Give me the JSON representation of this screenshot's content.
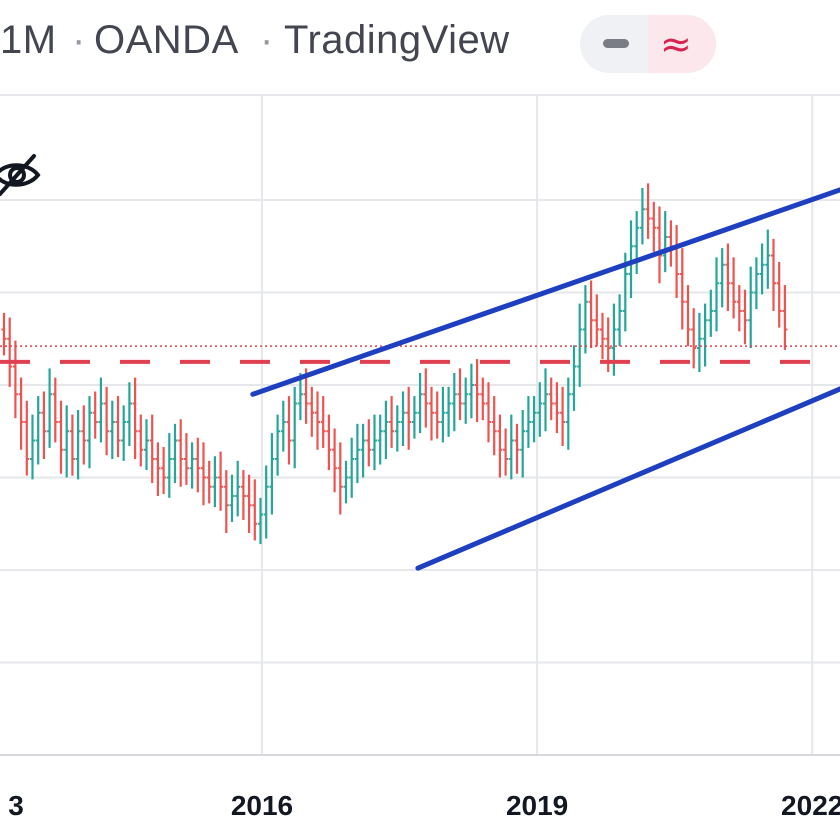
{
  "header": {
    "interval": "1M",
    "broker": "OANDA",
    "platform": "TradingView",
    "separator": "·",
    "minus_icon": "minus-icon",
    "wave_icon": "approx-wave-icon",
    "wave_glyph": "≈",
    "accent_color": "#d8224f"
  },
  "overlay": {
    "hide_icon": "eye-slash-icon"
  },
  "chart_data": {
    "type": "ohlc-bar",
    "title": "",
    "xlabel": "",
    "ylabel": "",
    "grid": true,
    "x_tick_labels": [
      {
        "label": "3",
        "year": 2013
      },
      {
        "label": "2016",
        "year": 2016
      },
      {
        "label": "2019",
        "year": 2019
      },
      {
        "label": "2022",
        "year": 2022
      }
    ],
    "colors": {
      "up": "#26a69a",
      "down": "#ef5350",
      "channel": "#1e3fbf",
      "horizontal_level": "#e04050",
      "price_line": "#e04050",
      "grid": "#e6e7ea"
    },
    "annotations": {
      "ascending_channel": {
        "upper": {
          "from_year": 2015.9,
          "to_year": 2023.0,
          "from_level": 3.9,
          "to_level": 6.35
        },
        "lower": {
          "from_year": 2017.7,
          "to_year": 2023.0,
          "from_level": 2.02,
          "to_level": 4.25
        }
      },
      "horizontal_dashed_level": 4.25,
      "dotted_price_line": 4.42
    },
    "series_levels": [
      4.5,
      4.2,
      3.9,
      3.6,
      3.2,
      3.4,
      3.7,
      3.5,
      3.9,
      3.6,
      3.3,
      3.5,
      3.2,
      3.5,
      3.4,
      3.7,
      3.6,
      3.8,
      3.5,
      3.6,
      3.4,
      3.6,
      3.8,
      3.5,
      3.3,
      3.4,
      3.2,
      3.1,
      3.0,
      3.2,
      3.4,
      3.2,
      3.1,
      3.2,
      3.1,
      3.0,
      2.9,
      3.0,
      2.9,
      2.7,
      2.8,
      2.9,
      2.8,
      2.7,
      2.5,
      2.6,
      2.9,
      3.2,
      3.5,
      3.6,
      3.4,
      3.8,
      3.9,
      3.8,
      3.7,
      3.6,
      3.5,
      3.3,
      3.1,
      2.9,
      3.0,
      3.2,
      3.3,
      3.4,
      3.3,
      3.4,
      3.5,
      3.6,
      3.5,
      3.6,
      3.7,
      3.6,
      3.7,
      3.9,
      3.8,
      3.7,
      3.6,
      3.7,
      3.8,
      3.9,
      3.8,
      3.9,
      4.0,
      3.9,
      3.8,
      3.6,
      3.5,
      3.3,
      3.2,
      3.4,
      3.3,
      3.5,
      3.6,
      3.7,
      3.8,
      3.9,
      3.8,
      3.7,
      3.6,
      3.9,
      4.2,
      4.6,
      4.9,
      4.7,
      4.6,
      4.5,
      4.4,
      4.6,
      4.8,
      5.2,
      5.5,
      5.7,
      5.9,
      5.8,
      5.7,
      5.4,
      5.6,
      5.5,
      5.2,
      4.9,
      4.6,
      4.4,
      4.5,
      4.7,
      4.8,
      5.1,
      5.3,
      5.1,
      4.9,
      4.8,
      4.7,
      5.0,
      5.2,
      5.3,
      5.4,
      5.1,
      4.8,
      4.6
    ]
  }
}
